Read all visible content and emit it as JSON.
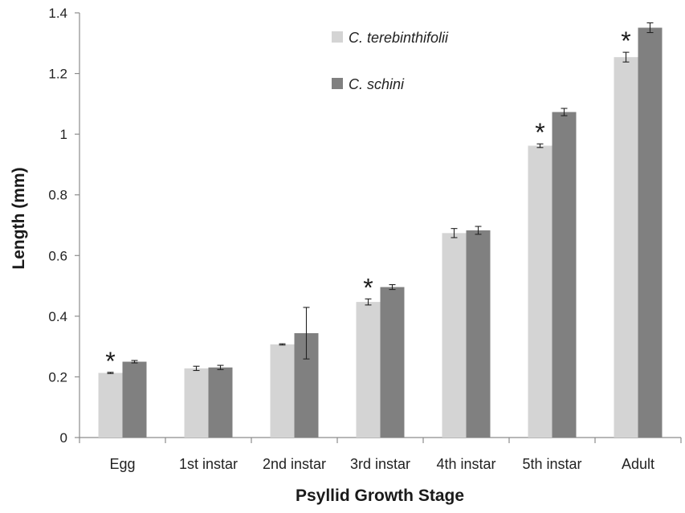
{
  "chart_data": {
    "type": "bar",
    "title": "",
    "xlabel": "Psyllid Growth Stage",
    "ylabel": "Length (mm)",
    "ylim": [
      0,
      1.4
    ],
    "yticks": [
      {
        "value": 0,
        "label": "0"
      },
      {
        "value": 0.2,
        "label": "0.2"
      },
      {
        "value": 0.4,
        "label": "0.4"
      },
      {
        "value": 0.6,
        "label": "0.6"
      },
      {
        "value": 0.8,
        "label": "0.8"
      },
      {
        "value": 1.0,
        "label": "1"
      },
      {
        "value": 1.2,
        "label": "1.2"
      },
      {
        "value": 1.4,
        "label": "1.4"
      }
    ],
    "categories": [
      "Egg",
      "1st instar",
      "2nd instar",
      "3rd instar",
      "4th instar",
      "5th instar",
      "Adult"
    ],
    "series": [
      {
        "name": "C. terebinthifolii",
        "color": "#d4d4d4",
        "values": [
          0.213,
          0.228,
          0.307,
          0.447,
          0.674,
          0.962,
          1.254
        ],
        "errors": [
          0.002,
          0.007,
          0.002,
          0.01,
          0.015,
          0.006,
          0.016
        ]
      },
      {
        "name": "C. schini",
        "color": "#808080",
        "values": [
          0.25,
          0.231,
          0.344,
          0.496,
          0.683,
          1.073,
          1.351
        ],
        "errors": [
          0.004,
          0.007,
          0.085,
          0.008,
          0.013,
          0.012,
          0.016
        ]
      }
    ],
    "annotations": [
      {
        "category": "Egg",
        "text": "*"
      },
      {
        "category": "3rd instar",
        "text": "*"
      },
      {
        "category": "5th instar",
        "text": "*"
      },
      {
        "category": "Adult",
        "text": "*"
      }
    ],
    "legend": "top-center",
    "grid": false
  }
}
